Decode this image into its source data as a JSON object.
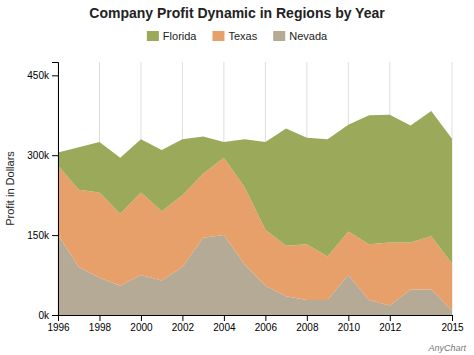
{
  "chart_data": {
    "type": "area",
    "stacked": true,
    "title": "Company Profit Dynamic in Regions by Year",
    "ylabel": "Profit in Dollars",
    "x": [
      1996,
      1997,
      1998,
      1999,
      2000,
      2001,
      2002,
      2003,
      2004,
      2005,
      2006,
      2007,
      2008,
      2009,
      2010,
      2011,
      2012,
      2013,
      2014,
      2015
    ],
    "series": [
      {
        "name": "Nevada",
        "color": "#b5aa95",
        "values": [
          150000,
          90000,
          70000,
          55000,
          75000,
          65000,
          90000,
          145000,
          150000,
          95000,
          55000,
          35000,
          28000,
          28000,
          75000,
          28000,
          18000,
          48000,
          48000,
          8000
        ]
      },
      {
        "name": "Texas",
        "color": "#e8a06a",
        "values": [
          130000,
          145000,
          160000,
          135000,
          155000,
          130000,
          135000,
          120000,
          145000,
          145000,
          105000,
          95000,
          105000,
          82000,
          82000,
          105000,
          118000,
          88000,
          100000,
          88000
        ]
      },
      {
        "name": "Florida",
        "color": "#9aaa5a",
        "values": [
          25000,
          80000,
          95000,
          105000,
          100000,
          115000,
          105000,
          70000,
          30000,
          90000,
          165000,
          220000,
          200000,
          220000,
          200000,
          242000,
          240000,
          220000,
          235000,
          235000
        ]
      }
    ],
    "xlim": [
      1996,
      2015
    ],
    "xticks": [
      1996,
      1998,
      2000,
      2002,
      2004,
      2006,
      2008,
      2010,
      2012,
      2015
    ],
    "ylim": [
      0,
      475000
    ],
    "yticks": [
      {
        "value": 0,
        "label": "0k"
      },
      {
        "value": 150000,
        "label": "150k"
      },
      {
        "value": 300000,
        "label": "300k"
      },
      {
        "value": 450000,
        "label": "450k"
      }
    ],
    "grid": "x",
    "legend": "top",
    "annotations": [
      {
        "text": "AnyChart"
      }
    ]
  }
}
